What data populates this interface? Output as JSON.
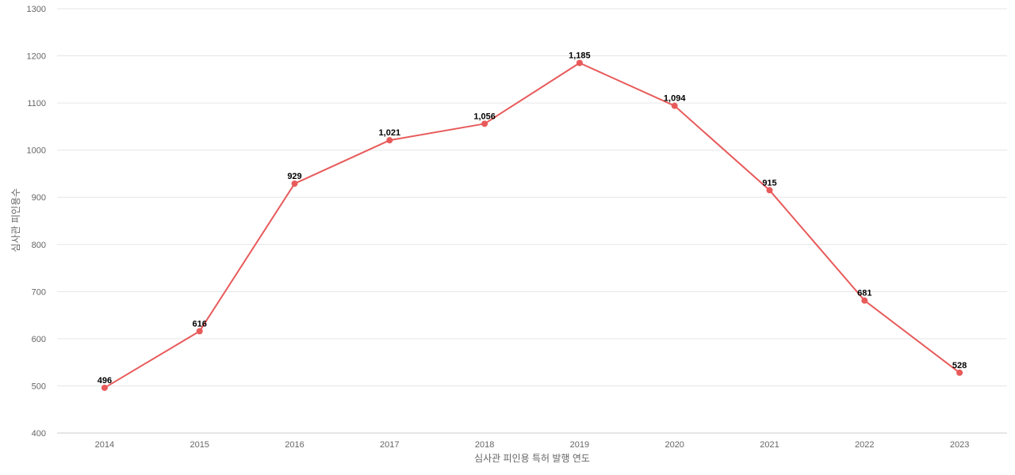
{
  "chart_data": {
    "type": "line",
    "title": "",
    "xlabel": "심사관 피인용 특허 발행 연도",
    "ylabel": "심사관 피인용수",
    "categories": [
      "2014",
      "2015",
      "2016",
      "2017",
      "2018",
      "2019",
      "2020",
      "2021",
      "2022",
      "2023"
    ],
    "series": [
      {
        "values": [
          496,
          616,
          929,
          1021,
          1056,
          1185,
          1094,
          915,
          681,
          528
        ],
        "labels": [
          "496",
          "616",
          "929",
          "1,021",
          "1,056",
          "1,185",
          "1,094",
          "915",
          "681",
          "528"
        ],
        "color": "#e85a5a"
      }
    ],
    "ylim": [
      400,
      1300
    ],
    "yticks": [
      "400",
      "500",
      "600",
      "700",
      "800",
      "900",
      "1000",
      "1100",
      "1200",
      "1300"
    ],
    "grid": true,
    "legend": "none"
  }
}
